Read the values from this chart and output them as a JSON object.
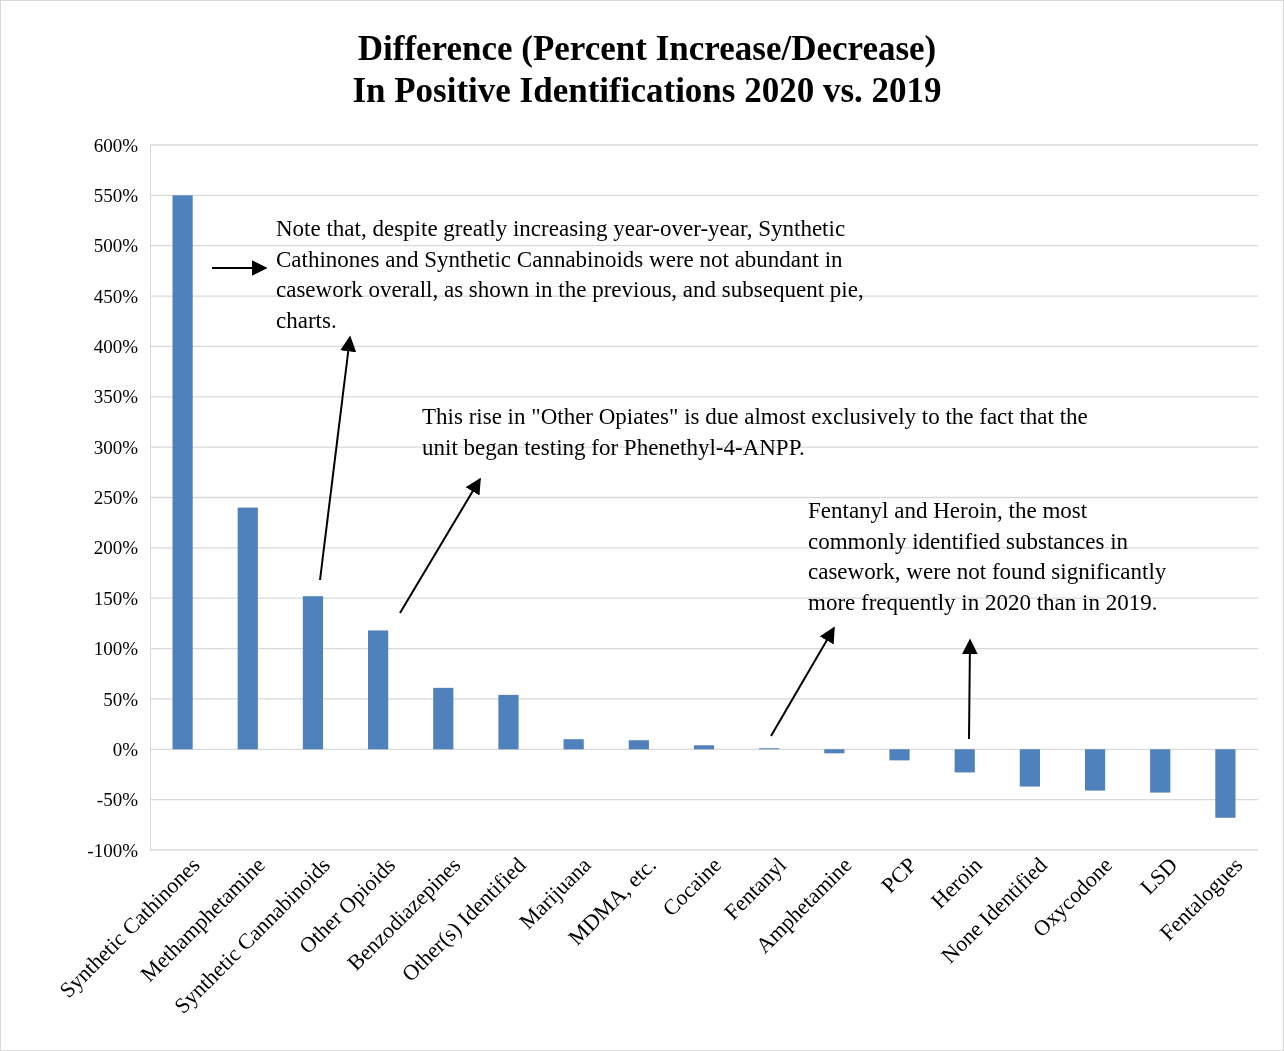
{
  "chart_data": {
    "type": "bar",
    "title": "Difference (Percent Increase/Decrease)\nIn Positive Identifications 2020 vs. 2019",
    "categories": [
      "Synthetic Cathinones",
      "Methamphetamine",
      "Synthetic Cannabinoids",
      "Other Opioids",
      "Benzodiazepines",
      "Other(s) Identified",
      "Marijuana",
      "MDMA, etc.",
      "Cocaine",
      "Fentanyl",
      "Amphetamine",
      "PCP",
      "Heroin",
      "None Identified",
      "Oxycodone",
      "LSD",
      "Fentalogues"
    ],
    "values": [
      550,
      240,
      152,
      118,
      61,
      54,
      10,
      9,
      4,
      1,
      -4,
      -11,
      -23,
      -37,
      -41,
      -43,
      -68
    ],
    "color": "#4f81bd",
    "ylim": [
      -100,
      600
    ],
    "yticks": [
      {
        "value": -100,
        "label": "-100%"
      },
      {
        "value": -50,
        "label": "-50%"
      },
      {
        "value": 0,
        "label": "0%"
      },
      {
        "value": 50,
        "label": "50%"
      },
      {
        "value": 100,
        "label": "100%"
      },
      {
        "value": 150,
        "label": "150%"
      },
      {
        "value": 200,
        "label": "200%"
      },
      {
        "value": 250,
        "label": "250%"
      },
      {
        "value": 300,
        "label": "300%"
      },
      {
        "value": 350,
        "label": "350%"
      },
      {
        "value": 400,
        "label": "400%"
      },
      {
        "value": 450,
        "label": "450%"
      },
      {
        "value": 500,
        "label": "500%"
      },
      {
        "value": 550,
        "label": "550%"
      },
      {
        "value": 600,
        "label": "600%"
      }
    ],
    "grid": "y",
    "annotations": [
      "Note that, despite greatly increasing year-over-year, Synthetic\nCathinones and Synthetic Cannabinoids were not abundant in\ncasework overall, as shown in the previous, and subsequent pie,\ncharts.",
      "This rise in \"Other Opiates\" is due almost exclusively to the fact that the\nunit began testing for Phenethyl-4-ANPP.",
      "Fentanyl and Heroin, the most\ncommonly identified substances in\ncasework, were not found significantly\nmore frequently in 2020 than in 2019."
    ]
  }
}
